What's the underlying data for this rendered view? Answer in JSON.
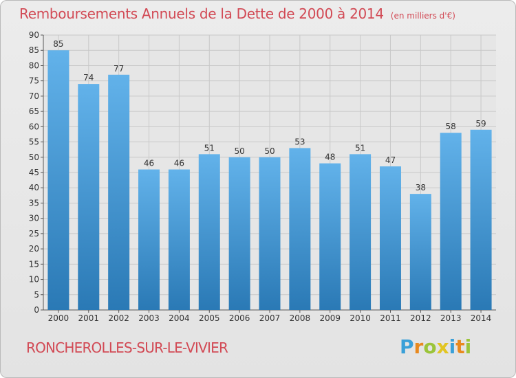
{
  "header": {
    "title": "Remboursements Annuels de la Dette de 2000 à 2014",
    "unit": "(en milliers d'€)"
  },
  "footer": {
    "commune": "RONCHEROLLES-SUR-LE-VIVIER",
    "logo_letters": [
      {
        "char": "P",
        "color": "#3aa0d8"
      },
      {
        "char": "r",
        "color": "#e8891e"
      },
      {
        "char": "o",
        "color": "#9bc43a"
      },
      {
        "char": "x",
        "color": "#e2c522"
      },
      {
        "char": "i",
        "color": "#3aa0d8"
      },
      {
        "char": "t",
        "color": "#e8891e"
      },
      {
        "char": "i",
        "color": "#9bc43a"
      }
    ]
  },
  "colors": {
    "title": "#d24a55",
    "bar_top": "#62b2ea",
    "bar_bottom": "#2a79b5",
    "grid": "#c8c8c8"
  },
  "chart_data": {
    "type": "bar",
    "categories": [
      "2000",
      "2001",
      "2002",
      "2003",
      "2004",
      "2005",
      "2006",
      "2007",
      "2008",
      "2009",
      "2010",
      "2011",
      "2012",
      "2013",
      "2014"
    ],
    "values": [
      85,
      74,
      77,
      46,
      46,
      51,
      50,
      50,
      53,
      48,
      51,
      47,
      38,
      58,
      59
    ],
    "ylim": [
      0,
      90
    ],
    "ytick_step": 5,
    "grid": true,
    "xlabel": "",
    "ylabel": ""
  }
}
